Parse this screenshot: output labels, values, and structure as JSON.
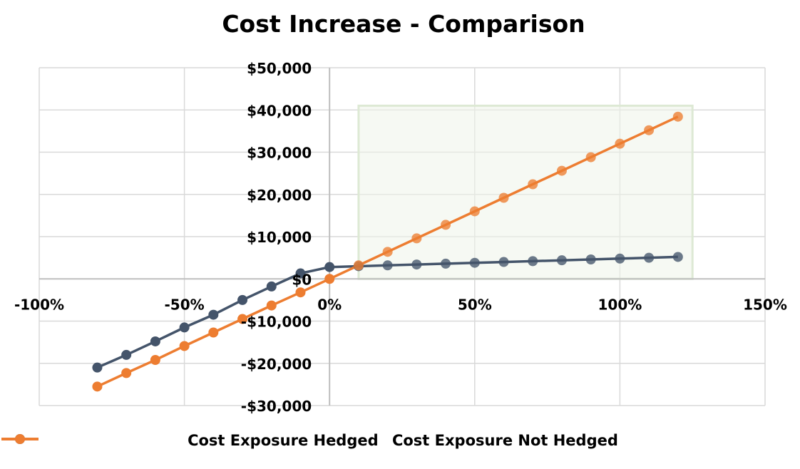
{
  "chart_data": {
    "type": "line",
    "title": "Cost Increase - Comparison",
    "xlim": [
      -1.0,
      1.5
    ],
    "ylim": [
      -30000,
      50000
    ],
    "x_ticks": [
      -1.0,
      -0.5,
      0,
      0.5,
      1.0,
      1.5
    ],
    "x_tick_labels": [
      "-100%",
      "-50%",
      "0%",
      "50%",
      "100%",
      "150%"
    ],
    "y_ticks": [
      -30000,
      -20000,
      -10000,
      0,
      10000,
      20000,
      30000,
      40000,
      50000
    ],
    "y_tick_labels": [
      "-$30,000",
      "-$20,000",
      "-$10,000",
      "$0",
      "$10,000",
      "$20,000",
      "$30,000",
      "$40,000",
      "$50,000"
    ],
    "grid": true,
    "legend_position": "bottom",
    "highlight_region": {
      "x": [
        0.1,
        1.25
      ],
      "y": [
        0,
        41000
      ],
      "fill": "#eef4ea",
      "stroke": "#dde9d4"
    },
    "x": [
      -0.8,
      -0.7,
      -0.6,
      -0.5,
      -0.4,
      -0.3,
      -0.2,
      -0.1,
      0,
      0.1,
      0.2,
      0.3,
      0.4,
      0.5,
      0.6,
      0.7,
      0.8,
      0.9,
      1.0,
      1.1,
      1.2
    ],
    "series": [
      {
        "name": "Cost Exposure Hedged",
        "color": "#44546a",
        "values": [
          -21000,
          -18000,
          -14800,
          -11500,
          -8500,
          -5000,
          -1800,
          1300,
          2800,
          3000,
          3200,
          3400,
          3600,
          3800,
          4000,
          4200,
          4400,
          4600,
          4800,
          5000,
          5200
        ]
      },
      {
        "name": "Cost Exposure Not Hedged",
        "color": "#ed7d31",
        "values": [
          -25500,
          -22300,
          -19200,
          -15900,
          -12700,
          -9500,
          -6300,
          -3200,
          0,
          3200,
          6400,
          9600,
          12800,
          16000,
          19200,
          22400,
          25600,
          28800,
          32000,
          35200,
          38400
        ]
      }
    ]
  }
}
